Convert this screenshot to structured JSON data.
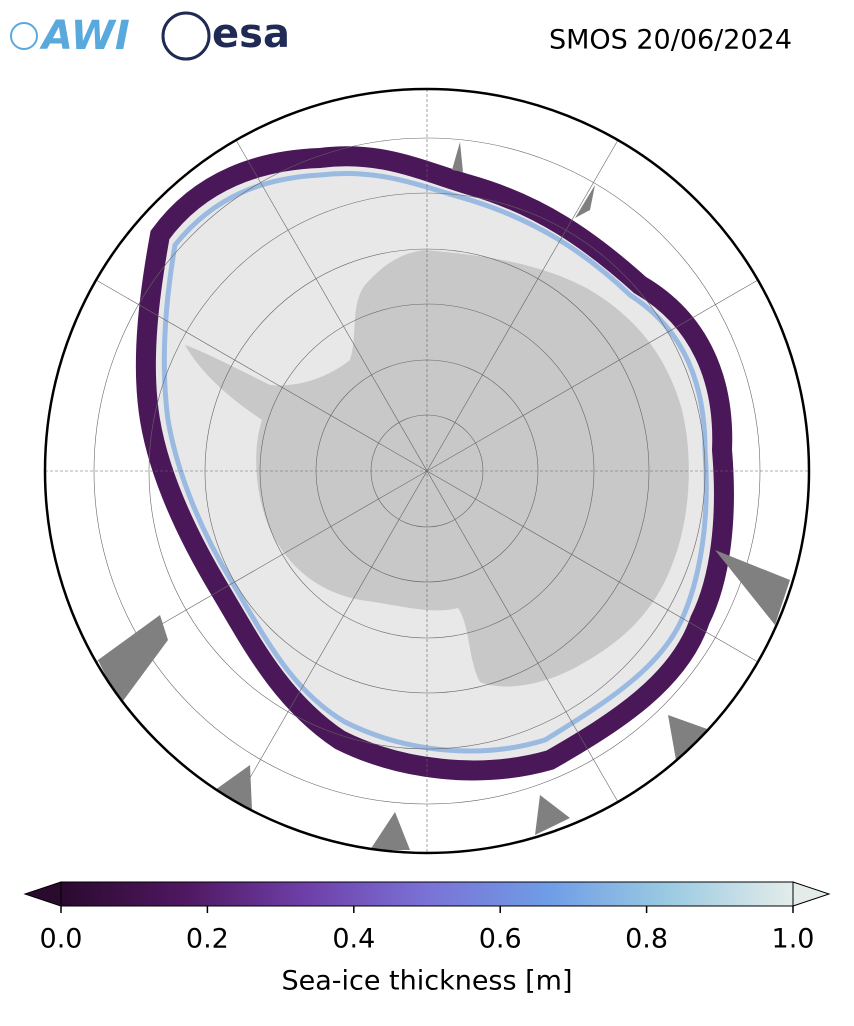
{
  "header": {
    "logos": [
      "AWI",
      "esa"
    ],
    "title": "SMOS 20/06/2024"
  },
  "colorbar": {
    "label": "Sea-ice thickness [m]",
    "range": [
      0,
      1
    ],
    "ticks": [
      {
        "value": 0,
        "label": "0.0"
      },
      0.2,
      0.4,
      0.6,
      0.8,
      {
        "value": 1,
        "label": "1.0"
      }
    ],
    "colormap": [
      "#2a0a2e",
      "#4f1760",
      "#6e3fa8",
      "#7a72d6",
      "#6f9de6",
      "#9ccbe2",
      "#e4ecea"
    ]
  }
}
